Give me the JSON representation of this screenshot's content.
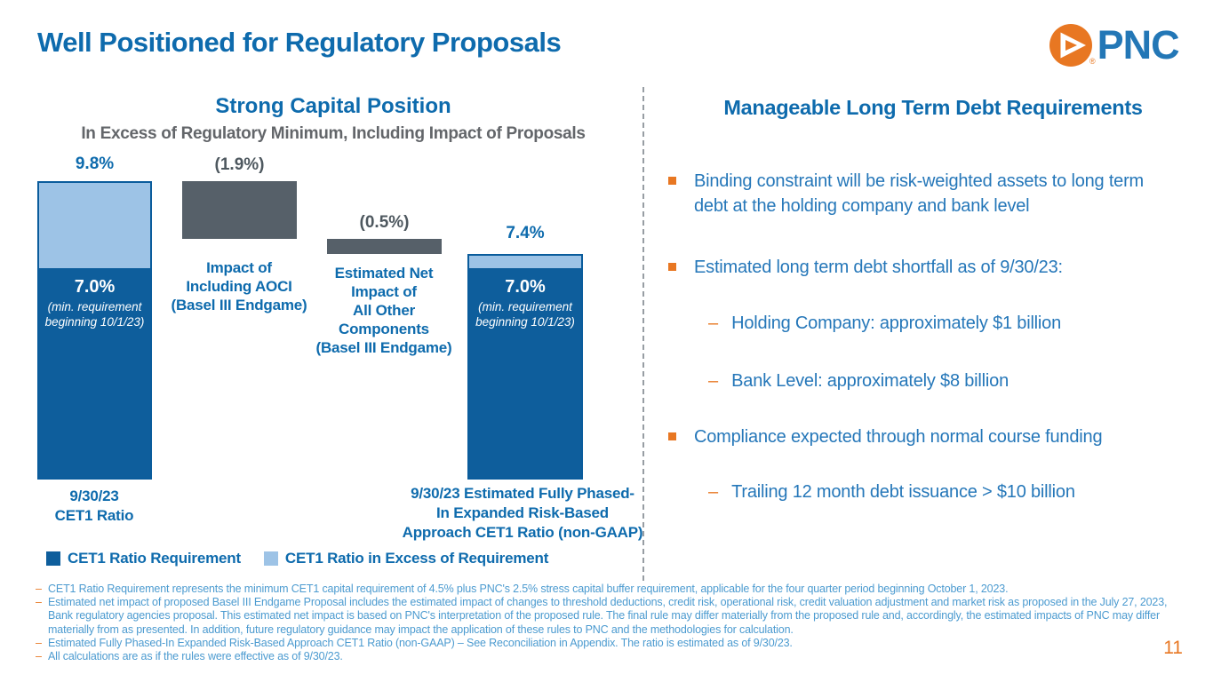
{
  "page": {
    "title": "Well Positioned for Regulatory Proposals",
    "page_number": "11"
  },
  "logo": {
    "wordmark": "PNC",
    "registered": "®"
  },
  "capital_panel": {
    "title": "Strong Capital Position",
    "subtitle": "In Excess of Regulatory Minimum, Including Impact of Proposals",
    "legend": [
      {
        "label": "CET1 Ratio Requirement",
        "swatch": "requirement"
      },
      {
        "label": "CET1 Ratio in Excess of Requirement",
        "swatch": "excess"
      }
    ]
  },
  "chart_data": {
    "type": "bar",
    "subtype": "waterfall",
    "title": "Strong Capital Position",
    "subtitle": "In Excess of Regulatory Minimum, Including Impact of Proposals",
    "ylim": [
      0,
      9.8
    ],
    "grid": false,
    "colors": {
      "requirement": "#0e5e9c",
      "excess": "#9dc3e6",
      "impact": "#566069"
    },
    "bars": [
      {
        "kind": "stacked",
        "value_label": "9.8%",
        "total": 9.8,
        "requirement": 7.0,
        "excess": 2.8,
        "inner_label": "7.0%",
        "inner_note": "(min. requirement\nbeginning 10/1/23)",
        "axis_label": "9/30/23\nCET1 Ratio"
      },
      {
        "kind": "impact",
        "value_label": "(1.9%)",
        "value": -1.9,
        "from": 9.8,
        "to": 7.9,
        "caption": "Impact of\nIncluding AOCI\n(Basel III Endgame)"
      },
      {
        "kind": "impact",
        "value_label": "(0.5%)",
        "value": -0.5,
        "from": 7.9,
        "to": 7.4,
        "caption": "Estimated Net\nImpact of\nAll Other\nComponents\n(Basel III Endgame)"
      },
      {
        "kind": "stacked",
        "value_label": "7.4%",
        "total": 7.4,
        "requirement": 7.0,
        "excess": 0.4,
        "inner_label": "7.0%",
        "inner_note": "(min. requirement\nbeginning 10/1/23)",
        "axis_label": "9/30/23 Estimated Fully Phased-\nIn Expanded Risk-Based\nApproach CET1 Ratio (non-GAAP)"
      }
    ]
  },
  "debt_panel": {
    "title": "Manageable Long Term Debt Requirements",
    "items": [
      {
        "level": "bullet",
        "text": "Binding constraint will be risk-weighted assets to long term debt at the holding company and bank level"
      },
      {
        "level": "bullet",
        "text": "Estimated long term debt shortfall as of 9/30/23:"
      },
      {
        "level": "sub",
        "text": "Holding Company: approximately $1 billion"
      },
      {
        "level": "sub",
        "text": "Bank Level: approximately $8 billion"
      },
      {
        "level": "bullet",
        "text": "Compliance expected through normal course funding"
      },
      {
        "level": "sub",
        "text": "Trailing 12 month debt issuance > $10 billion"
      }
    ]
  },
  "footnotes": [
    "CET1 Ratio Requirement represents the minimum CET1 capital requirement of 4.5% plus PNC's 2.5% stress capital buffer requirement, applicable for the four quarter period beginning October 1, 2023.",
    "Estimated net impact of proposed Basel III Endgame Proposal includes the estimated impact of changes to threshold deductions, credit risk, operational risk, credit valuation adjustment and market risk as proposed in the July 27, 2023, Bank regulatory agencies proposal. This estimated net impact is based on PNC's interpretation of the proposed rule. The final rule may differ materially from the proposed rule and, accordingly, the estimated impacts of PNC may differ materially from as presented. In addition, future regulatory guidance may impact the application of these rules to PNC and the methodologies for calculation.",
    "Estimated Fully Phased-In Expanded Risk-Based Approach CET1 Ratio (non-GAAP) – See Reconciliation in Appendix. The ratio is estimated as of 9/30/23.",
    "All calculations are as if the rules were effective as of 9/30/23."
  ]
}
